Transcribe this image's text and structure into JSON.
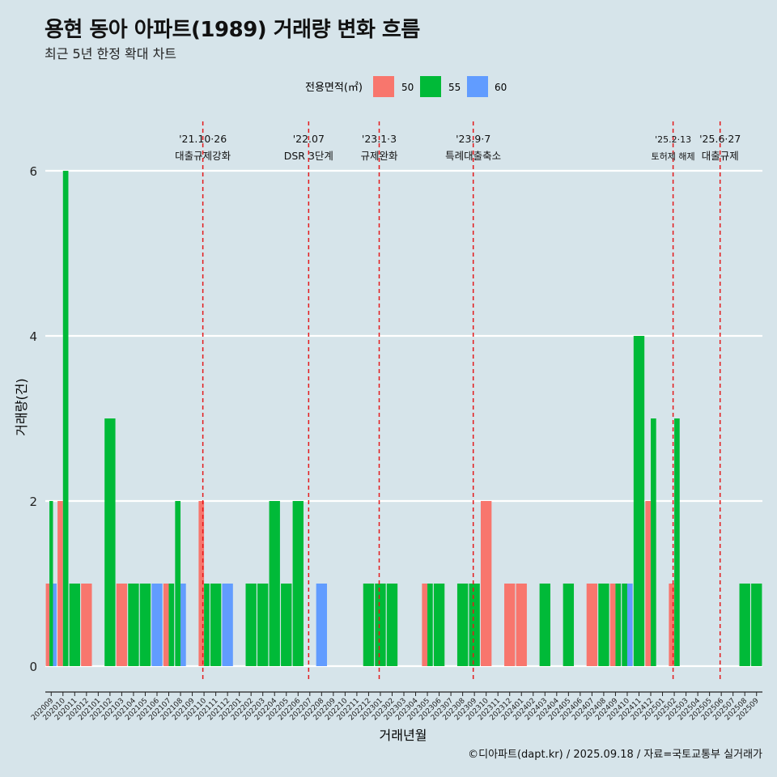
{
  "title": "용현 동아 아파트(1989) 거래량 변화 흐름",
  "subtitle": "최근 5년 한정 확대 차트",
  "caption": "©디아파트(dapt.kr) / 2025.09.18 / 자료=국토교통부 실거래가",
  "colors": {
    "background": "#d6e4ea",
    "grid": "#ffffff",
    "event_line": "#e41a1c",
    "s50": "#f8766d",
    "s55": "#00ba38",
    "s60": "#619cff"
  },
  "chart_data": {
    "type": "bar",
    "title": "용현 동아 아파트(1989) 거래량 변화 흐름",
    "subtitle": "최근 5년 한정 확대 차트",
    "xlabel": "거래년월",
    "ylabel": "거래량(건)",
    "ylim": [
      0,
      6
    ],
    "yticks": [
      0,
      2,
      4,
      6
    ],
    "legend": {
      "title": "전용면적(㎡)",
      "position": "top",
      "labels": [
        "50",
        "55",
        "60"
      ]
    },
    "categories": [
      "202009",
      "202010",
      "202011",
      "202012",
      "202101",
      "202102",
      "202103",
      "202104",
      "202105",
      "202106",
      "202107",
      "202108",
      "202109",
      "202110",
      "202111",
      "202112",
      "202201",
      "202202",
      "202203",
      "202204",
      "202205",
      "202206",
      "202207",
      "202208",
      "202209",
      "202210",
      "202211",
      "202212",
      "202301",
      "202302",
      "202303",
      "202304",
      "202305",
      "202306",
      "202307",
      "202308",
      "202309",
      "202310",
      "202311",
      "202312",
      "202401",
      "202402",
      "202403",
      "202404",
      "202405",
      "202406",
      "202407",
      "202408",
      "202409",
      "202410",
      "202411",
      "202412",
      "202501",
      "202502",
      "202503",
      "202504",
      "202505",
      "202506",
      "202507",
      "202508",
      "202509"
    ],
    "series": [
      {
        "name": "50",
        "values": [
          1,
          2,
          0,
          1,
          0,
          0,
          1,
          0,
          0,
          0,
          1,
          0,
          0,
          2,
          0,
          0,
          0,
          0,
          0,
          0,
          0,
          0,
          0,
          0,
          0,
          0,
          0,
          0,
          0,
          0,
          0,
          0,
          1,
          0,
          0,
          0,
          0,
          2,
          0,
          1,
          1,
          0,
          0,
          0,
          0,
          0,
          1,
          0,
          1,
          0,
          0,
          2,
          0,
          1,
          0,
          0,
          0,
          0,
          0,
          0,
          0
        ]
      },
      {
        "name": "55",
        "values": [
          2,
          6,
          1,
          0,
          0,
          3,
          0,
          1,
          1,
          0,
          1,
          2,
          0,
          1,
          1,
          0,
          0,
          1,
          1,
          2,
          1,
          2,
          0,
          0,
          0,
          0,
          0,
          1,
          1,
          1,
          0,
          0,
          1,
          1,
          0,
          1,
          1,
          0,
          0,
          0,
          0,
          0,
          1,
          0,
          1,
          0,
          0,
          1,
          1,
          1,
          4,
          3,
          0,
          3,
          0,
          0,
          0,
          0,
          0,
          1,
          1
        ]
      },
      {
        "name": "60",
        "values": [
          1,
          0,
          0,
          0,
          0,
          0,
          0,
          0,
          0,
          1,
          0,
          1,
          0,
          0,
          0,
          1,
          0,
          0,
          0,
          0,
          0,
          0,
          0,
          1,
          0,
          0,
          0,
          0,
          0,
          0,
          0,
          0,
          0,
          0,
          0,
          0,
          0,
          0,
          0,
          0,
          0,
          0,
          0,
          0,
          0,
          0,
          0,
          0,
          0,
          1,
          0,
          0,
          0,
          0,
          0,
          0,
          0,
          0,
          0,
          0,
          0
        ]
      }
    ],
    "events": [
      {
        "date": "'21.10·26",
        "label": "대출규제강화",
        "at": 13.4
      },
      {
        "date": "'22.07",
        "label": "DSR 3단계",
        "at": 22.4
      },
      {
        "date": "'23.1·3",
        "label": "규제완화",
        "at": 28.4
      },
      {
        "date": "'23.9·7",
        "label": "특례대출축소",
        "at": 36.4
      },
      {
        "date": "'25.2·13",
        "label": "토허제 해제",
        "at": 53.4
      },
      {
        "date": "'25.6·27",
        "label": "대출규제",
        "at": 57.4
      }
    ]
  }
}
